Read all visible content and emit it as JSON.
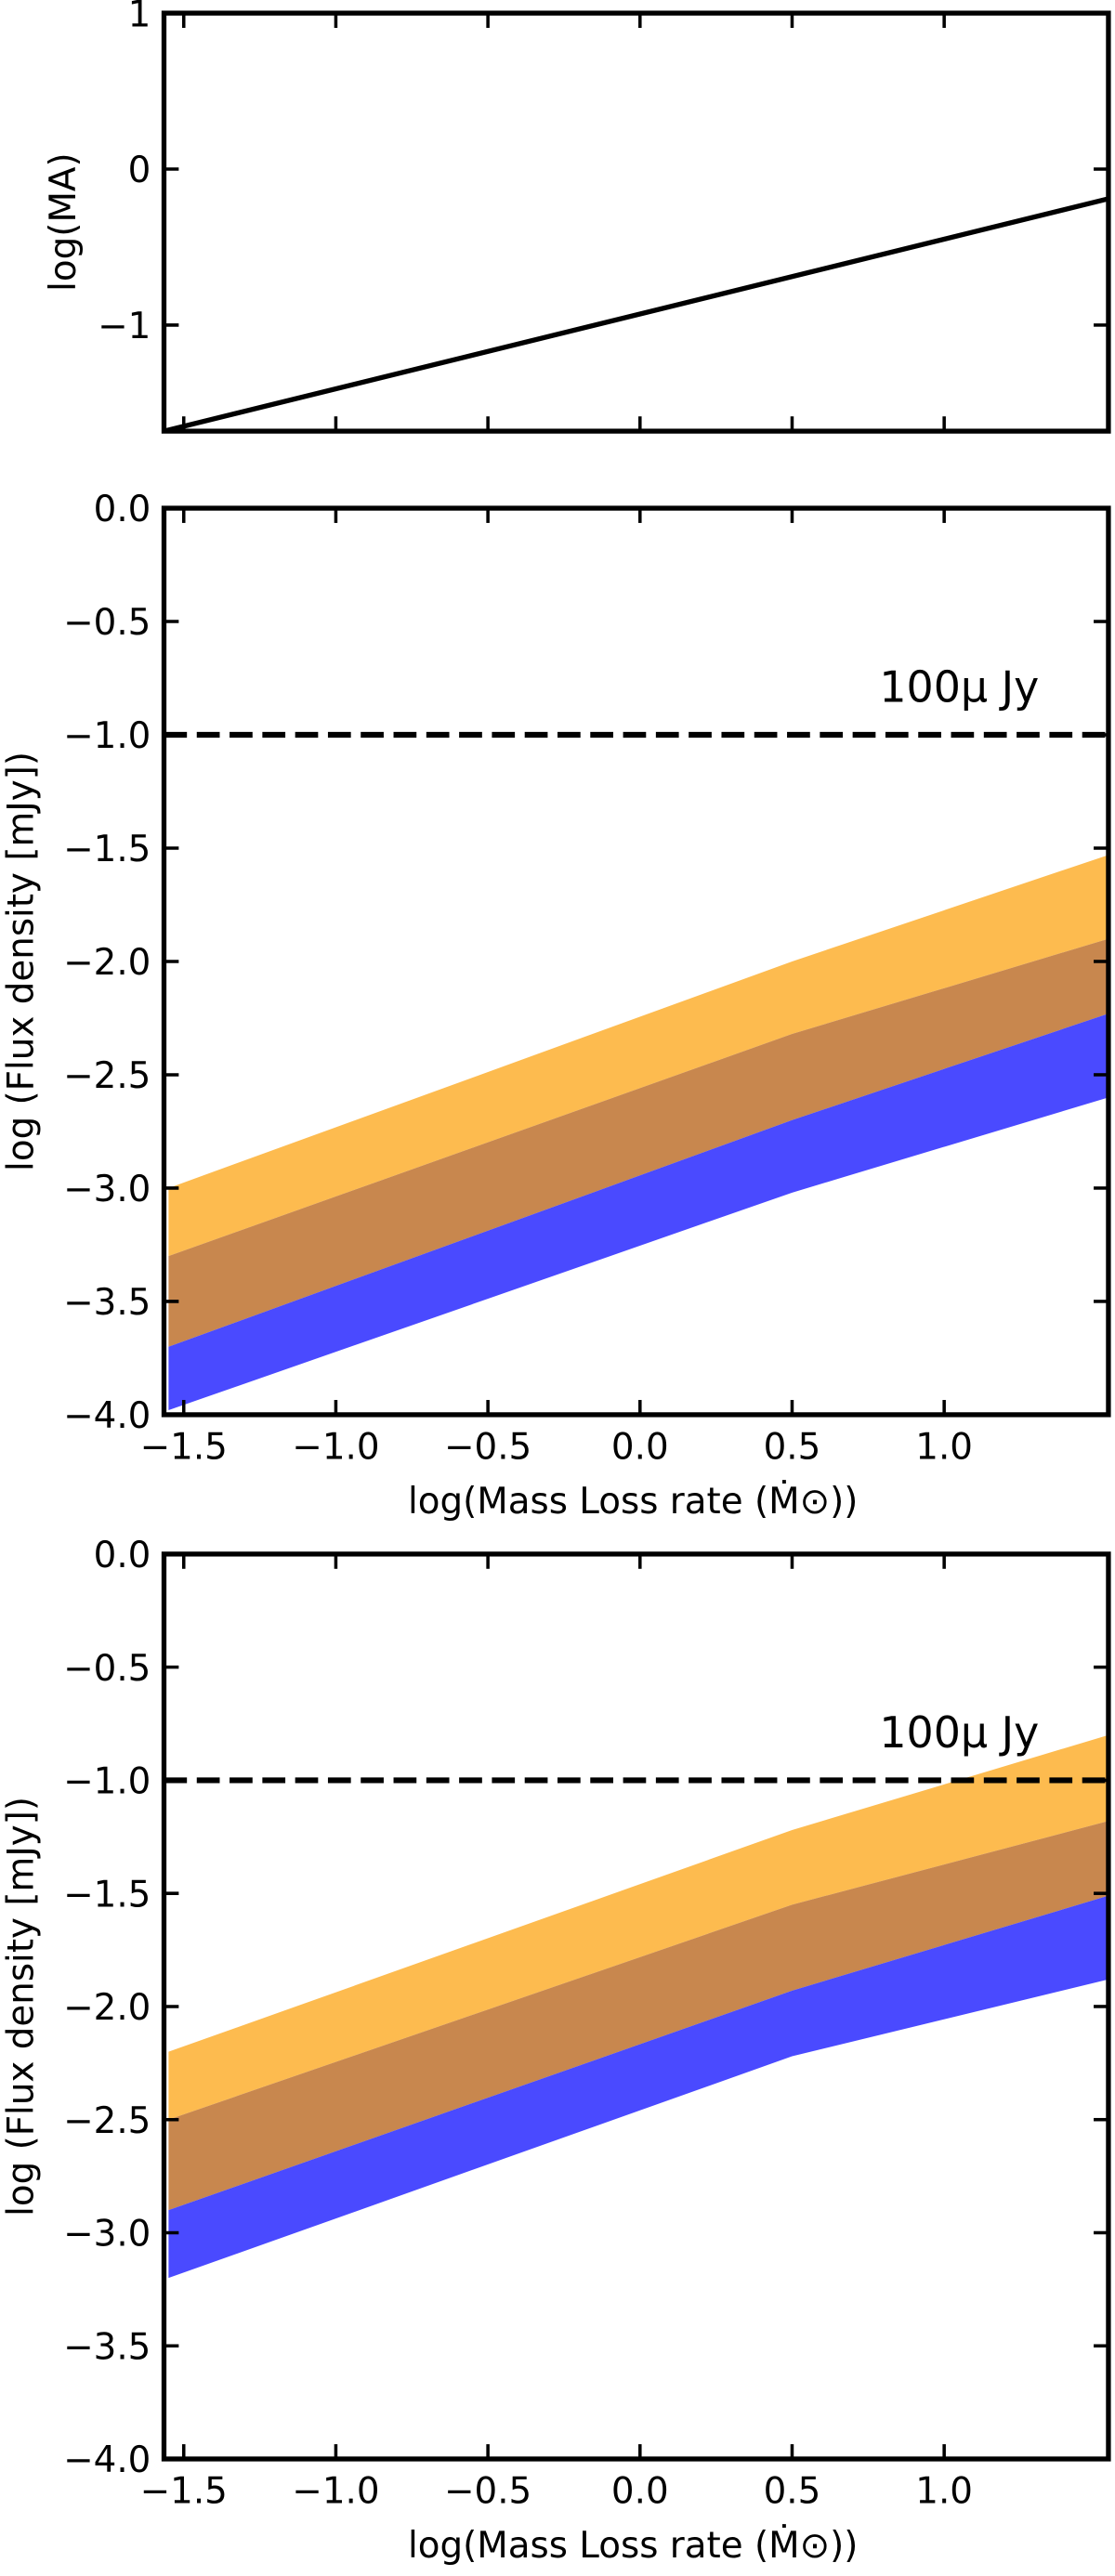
{
  "chart_data": [
    {
      "type": "line",
      "ylabel": "log(MA)",
      "x": [
        -1.565,
        1.54
      ],
      "series": [
        {
          "color": "#000000",
          "values": [
            -1.68,
            -0.19
          ]
        }
      ],
      "xlim": [
        -1.565,
        1.54
      ],
      "ylim": [
        -1.68,
        1
      ],
      "xticks": [
        -1.5,
        -1,
        -0.5,
        0,
        0.5,
        1
      ],
      "yticks": [
        {
          "value": -1,
          "label": "−1"
        },
        0,
        1
      ]
    },
    {
      "type": "area",
      "xlabel": "log(Mass Loss rate (Ṁ⊙))",
      "ylabel": "log (Flux density [mJy])",
      "annotation": "100μ Jy",
      "hline": -1,
      "x": [
        -1.55,
        0.5,
        1.54
      ],
      "series": [
        {
          "color": "#fdbb4f",
          "upper": [
            -3.0,
            -2.0,
            -1.53
          ],
          "lower": [
            -3.3,
            -2.32,
            -1.9
          ]
        },
        {
          "color": "#c8874e",
          "upper": [
            -3.3,
            -2.32,
            -1.9
          ],
          "lower": [
            -3.7,
            -2.7,
            -2.23
          ]
        },
        {
          "color": "#4a4aff",
          "upper": [
            -3.7,
            -2.7,
            -2.23
          ],
          "lower": [
            -3.98,
            -3.02,
            -2.6
          ]
        }
      ],
      "xlim": [
        -1.565,
        1.54
      ],
      "ylim": [
        -4,
        0
      ],
      "xticks": [
        {
          "value": -1.5,
          "label": "−1.5"
        },
        {
          "value": -1,
          "label": "−1.0"
        },
        {
          "value": -0.5,
          "label": "−0.5"
        },
        {
          "value": 0,
          "label": "0.0"
        },
        0.5,
        {
          "value": 1,
          "label": "1.0"
        }
      ],
      "yticks": [
        {
          "value": -4,
          "label": "−4.0"
        },
        {
          "value": -3.5,
          "label": "−3.5"
        },
        {
          "value": -3,
          "label": "−3.0"
        },
        {
          "value": -2.5,
          "label": "−2.5"
        },
        {
          "value": -2,
          "label": "−2.0"
        },
        {
          "value": -1.5,
          "label": "−1.5"
        },
        {
          "value": -1,
          "label": "−1.0"
        },
        {
          "value": -0.5,
          "label": "−0.5"
        },
        {
          "value": 0,
          "label": "0.0"
        }
      ]
    },
    {
      "type": "area",
      "xlabel": "log(Mass Loss rate (Ṁ⊙))",
      "ylabel": "log (Flux density [mJy])",
      "annotation": "100μ Jy",
      "hline": -1,
      "x": [
        -1.55,
        0.5,
        1.54
      ],
      "series": [
        {
          "color": "#fdbb4f",
          "upper": [
            -2.2,
            -1.22,
            -0.8
          ],
          "lower": [
            -2.5,
            -1.55,
            -1.18
          ]
        },
        {
          "color": "#c8874e",
          "upper": [
            -2.5,
            -1.55,
            -1.18
          ],
          "lower": [
            -2.9,
            -1.93,
            -1.51
          ]
        },
        {
          "color": "#4a4aff",
          "upper": [
            -2.9,
            -1.93,
            -1.51
          ],
          "lower": [
            -3.2,
            -2.22,
            -1.88
          ]
        }
      ],
      "xlim": [
        -1.565,
        1.54
      ],
      "ylim": [
        -4,
        0
      ],
      "xticks": [
        {
          "value": -1.5,
          "label": "−1.5"
        },
        {
          "value": -1,
          "label": "−1.0"
        },
        {
          "value": -0.5,
          "label": "−0.5"
        },
        {
          "value": 0,
          "label": "0.0"
        },
        0.5,
        {
          "value": 1,
          "label": "1.0"
        }
      ],
      "yticks": [
        {
          "value": -4,
          "label": "−4.0"
        },
        {
          "value": -3.5,
          "label": "−3.5"
        },
        {
          "value": -3,
          "label": "−3.0"
        },
        {
          "value": -2.5,
          "label": "−2.5"
        },
        {
          "value": -2,
          "label": "−2.0"
        },
        {
          "value": -1.5,
          "label": "−1.5"
        },
        {
          "value": -1,
          "label": "−1.0"
        },
        {
          "value": -0.5,
          "label": "−0.5"
        },
        {
          "value": 0,
          "label": "0.0"
        }
      ]
    }
  ]
}
